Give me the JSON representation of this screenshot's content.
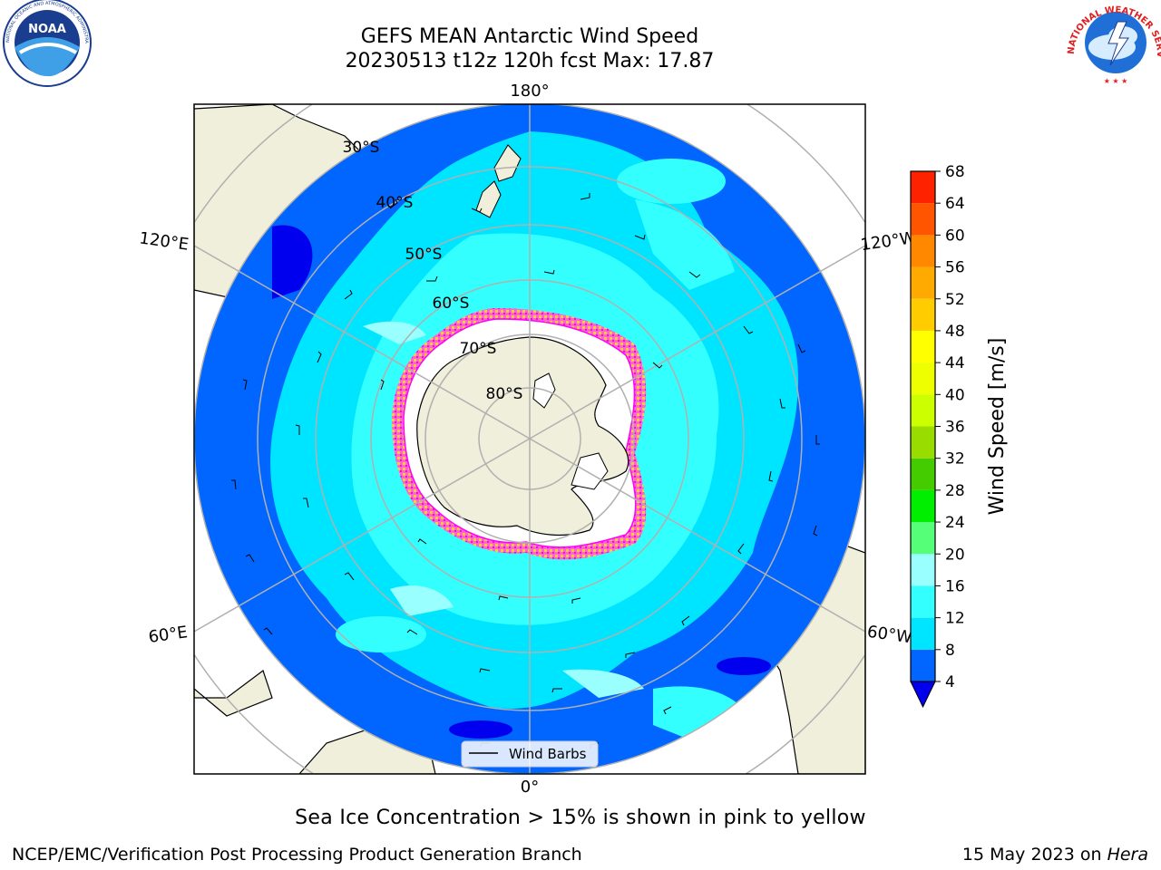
{
  "title": {
    "line1": "GEFS MEAN Antarctic Wind Speed",
    "line2": "20230513 t12z 120h fcst   Max: 17.87"
  },
  "logos": {
    "left": {
      "name": "noaa-logo",
      "text": "NOAA",
      "ring_text": "NATIONAL OCEANIC AND ATMOSPHERIC ADMINISTRATION · U.S. DEPARTMENT OF COMMERCE"
    },
    "right": {
      "name": "nws-logo",
      "ring_text": "NATIONAL WEATHER SERVICE"
    }
  },
  "map": {
    "projection": "south-polar-stereographic",
    "longitude_labels": [
      "180°",
      "120°E",
      "120°W",
      "60°E",
      "60°W",
      "0°"
    ],
    "latitude_labels": [
      "30°S",
      "40°S",
      "50°S",
      "60°S",
      "70°S",
      "80°S"
    ],
    "legend_label": "Wind Barbs",
    "colors": {
      "land": "#efefdb",
      "ice_shelf": "#ffffff",
      "sea_ice_edge": [
        "#ff00ff",
        "#ff66cc",
        "#ffcc00"
      ]
    }
  },
  "colorbar": {
    "label": "Wind Speed [m/s]",
    "ticks": [
      "4",
      "8",
      "12",
      "16",
      "20",
      "24",
      "28",
      "32",
      "36",
      "40",
      "44",
      "48",
      "52",
      "56",
      "60",
      "64",
      "68"
    ],
    "colors": [
      "#0066ff",
      "#00e5ff",
      "#33ffff",
      "#99ffff",
      "#55ff77",
      "#00ee00",
      "#44cc00",
      "#99dd00",
      "#ccff00",
      "#eeff00",
      "#ffff00",
      "#ffcc00",
      "#ffaa00",
      "#ff8800",
      "#ff5500",
      "#ff2200"
    ],
    "extend_min_color": "#0000ee"
  },
  "chart_data": {
    "type": "heatmap",
    "title": "GEFS MEAN Antarctic Wind Speed",
    "subtitle": "20230513 t12z 120h fcst   Max: 17.87",
    "max_value": 17.87,
    "colorbar_label": "Wind Speed [m/s]",
    "colorbar_range": [
      4,
      68
    ],
    "colorbar_step": 4
  },
  "caption": "Sea Ice Concentration > 15% is shown in pink to yellow",
  "footer": {
    "credit": "NCEP/EMC/Verification Post Processing Product Generation Branch",
    "date": "15 May 2023 on ",
    "host": "Hera"
  }
}
